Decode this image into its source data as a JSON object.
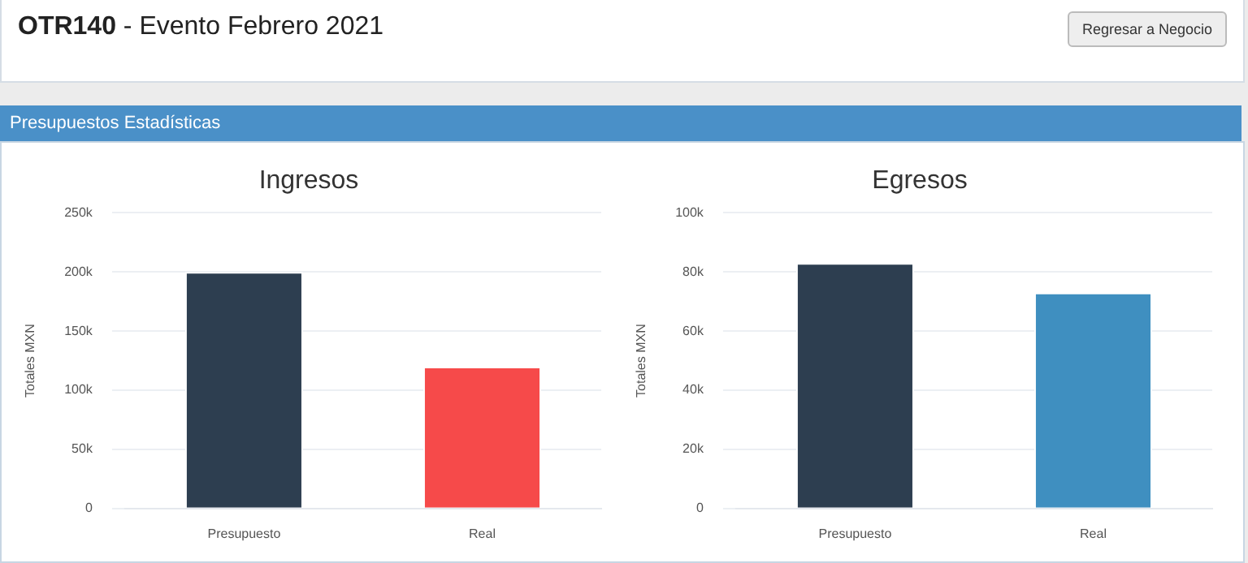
{
  "chart_data": [
    {
      "type": "bar",
      "title": "Ingresos",
      "ylabel": "Totales MXN",
      "annotations": [
        "OTR140 - Evento Febrero 2021",
        "Regresar a Negocio",
        "Presupuestos Estadísticas"
      ],
      "categories": [
        "Presupuesto",
        "Real"
      ],
      "values": [
        200000,
        120000
      ],
      "colors": [
        "#2d3e50",
        "#f64a4a"
      ],
      "ylim": [
        0,
        250000
      ],
      "yticks": [
        {
          "value": 0,
          "label": "0"
        },
        {
          "value": 50000,
          "label": "50k"
        },
        {
          "value": 100000,
          "label": "100k"
        },
        {
          "value": 150000,
          "label": "150k"
        },
        {
          "value": 200000,
          "label": "200k"
        },
        {
          "value": 250000,
          "label": "250k"
        }
      ],
      "grid": "y",
      "legend": false
    },
    {
      "type": "bar",
      "title": "Egresos",
      "ylabel": "Totales MXN",
      "categories": [
        "Presupuesto",
        "Real"
      ],
      "values": [
        83000,
        73000
      ],
      "colors": [
        "#2d3e50",
        "#3f8fc0"
      ],
      "ylim": [
        0,
        100000
      ],
      "yticks": [
        {
          "value": 0,
          "label": "0"
        },
        {
          "value": 20000,
          "label": "20k"
        },
        {
          "value": 40000,
          "label": "40k"
        },
        {
          "value": 60000,
          "label": "60k"
        },
        {
          "value": 80000,
          "label": "80k"
        },
        {
          "value": 100000,
          "label": "100k"
        }
      ],
      "grid": "y",
      "legend": false
    }
  ]
}
